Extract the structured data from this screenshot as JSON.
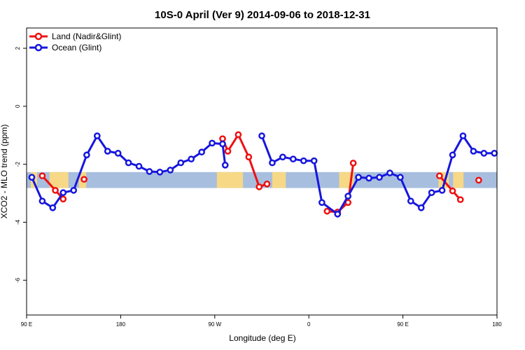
{
  "chart_data": {
    "type": "line",
    "title": "10S-0 April (Ver 9)   2014-09-06 to 2018-12-31",
    "xlabel": "Longitude (deg E)",
    "ylabel": "XCO2 - MLO trend (ppm)",
    "x_ticks": [
      {
        "value": 90,
        "label": "90 E"
      },
      {
        "value": 180,
        "label": "180"
      },
      {
        "value": 270,
        "label": "90 W"
      },
      {
        "value": 360,
        "label": "0"
      },
      {
        "value": 450,
        "label": "90 E"
      },
      {
        "value": 540,
        "label": "180"
      }
    ],
    "y_ticks": [
      {
        "value": 2,
        "label": "2"
      },
      {
        "value": 0,
        "label": "0"
      },
      {
        "value": -2,
        "label": "-2"
      },
      {
        "value": -4,
        "label": "-4"
      },
      {
        "value": -6,
        "label": "-6"
      }
    ],
    "xlim": [
      90,
      540
    ],
    "ylim": [
      -7.2,
      2.7
    ],
    "band": {
      "ymin": -2.82,
      "ymax": -2.27,
      "color": "#a7bedf",
      "land_color": "#ffda7d"
    },
    "legend": {
      "position": "top-left"
    },
    "series": [
      {
        "name": "Land (Nadir&Glint)",
        "color": "#ee1111",
        "segments": [
          {
            "x": [
              105,
              117.5,
              125
            ],
            "y": [
              -2.4,
              -2.9,
              -3.2
            ]
          },
          {
            "x": [
              145
            ],
            "y": [
              -2.52
            ]
          },
          {
            "x": [
              277.5,
              282.5,
              292.5,
              302.5,
              312.5,
              320
            ],
            "y": [
              -1.12,
              -1.55,
              -0.98,
              -1.75,
              -2.78,
              -2.68
            ]
          },
          {
            "x": [
              377.5,
              387.5,
              397.5,
              402.5
            ],
            "y": [
              -3.62,
              -3.65,
              -3.32,
              -1.96
            ]
          },
          {
            "x": [
              485,
              497.5,
              505
            ],
            "y": [
              -2.4,
              -2.92,
              -3.22
            ]
          },
          {
            "x": [
              522.5
            ],
            "y": [
              -2.55
            ]
          }
        ]
      },
      {
        "name": "Ocean (Glint)",
        "color": "#1616dd",
        "segments": [
          {
            "x": [
              95,
              105,
              115,
              125,
              135,
              147.5,
              157.5,
              167.5,
              177.5,
              187.5,
              197.5,
              207.5,
              217.5,
              227.5,
              237.5,
              247.5,
              257.5,
              267.5,
              277.5,
              280
            ],
            "y": [
              -2.45,
              -3.27,
              -3.5,
              -2.98,
              -2.9,
              -1.68,
              -1.02,
              -1.55,
              -1.62,
              -1.95,
              -2.07,
              -2.25,
              -2.27,
              -2.2,
              -1.95,
              -1.82,
              -1.58,
              -1.27,
              -1.3,
              -2.03
            ]
          },
          {
            "x": [
              315,
              325,
              335,
              345,
              355,
              365,
              372.5,
              387.5,
              397.5,
              407.5,
              417.5,
              427.5,
              437.5,
              447.5,
              457.5,
              467.5,
              477.5,
              487.5,
              497.5,
              507.5,
              517.5,
              527.5,
              537.5
            ],
            "y": [
              -1.02,
              -1.95,
              -1.75,
              -1.82,
              -1.88,
              -1.88,
              -3.32,
              -3.72,
              -3.1,
              -2.45,
              -2.48,
              -2.45,
              -2.3,
              -2.45,
              -3.27,
              -3.5,
              -2.98,
              -2.9,
              -1.68,
              -1.02,
              -1.55,
              -1.62,
              -1.62
            ]
          }
        ]
      }
    ]
  }
}
